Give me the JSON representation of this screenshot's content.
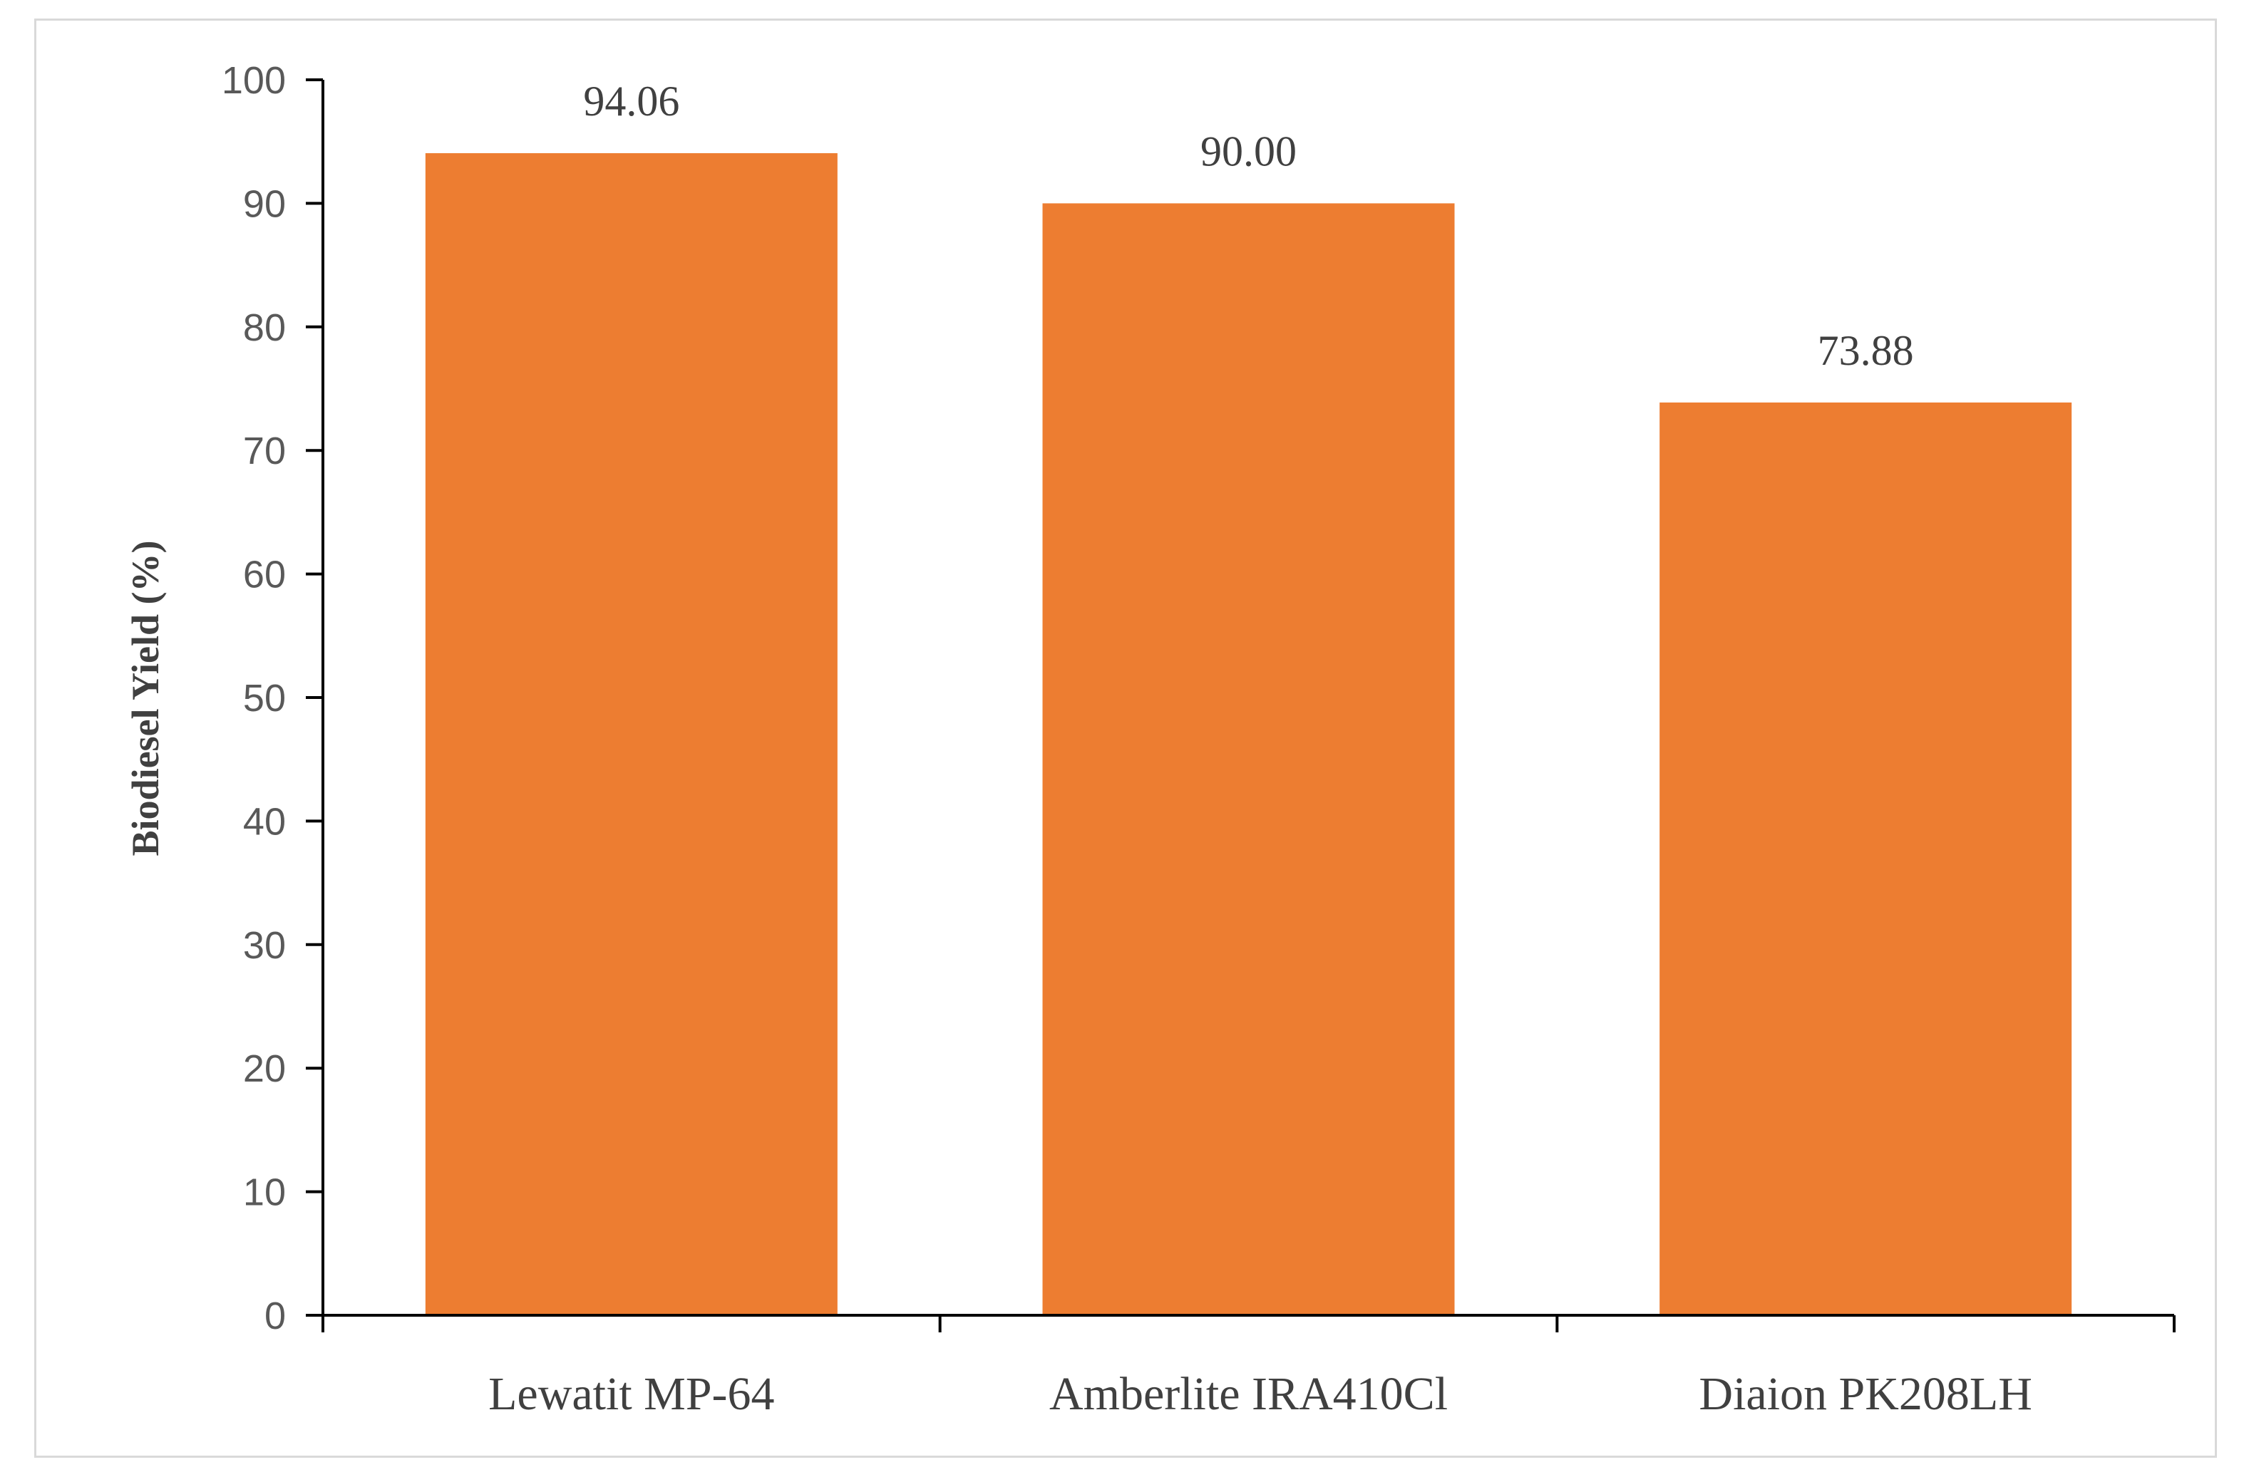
{
  "chart_data": {
    "type": "bar",
    "categories": [
      "Lewatit MP-64",
      "Amberlite IRA410Cl",
      "Diaion PK208LH"
    ],
    "values": [
      94.06,
      90.0,
      73.88
    ],
    "data_labels": [
      "94.06",
      "90.00",
      "73.88"
    ],
    "title": "",
    "xlabel": "",
    "ylabel": "Biodiesel Yield (%)",
    "ylim": [
      0,
      100
    ],
    "yticks": [
      0,
      10,
      20,
      30,
      40,
      50,
      60,
      70,
      80,
      90,
      100
    ],
    "grid": false,
    "legend": "none",
    "bar_color": "#ED7D31",
    "axis_color": "#000000"
  }
}
